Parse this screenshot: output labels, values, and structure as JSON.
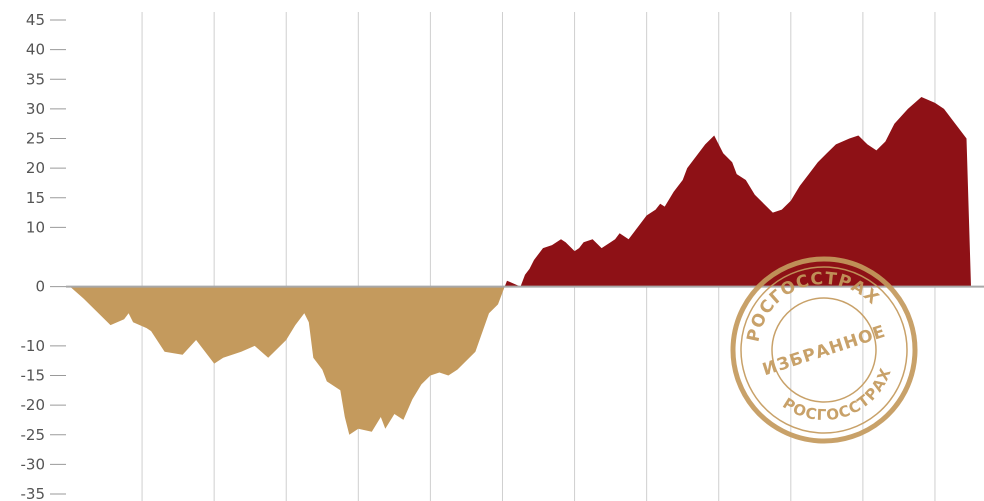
{
  "chart_data": {
    "type": "area",
    "ylim": [
      -35,
      45
    ],
    "y_ticks": [
      45,
      40,
      35,
      30,
      25,
      20,
      15,
      10,
      0,
      -10,
      -15,
      -20,
      -25,
      -30,
      -35
    ],
    "y_tick_labels": [
      "45",
      "40",
      "35",
      "30",
      "25",
      "20",
      "15",
      "10",
      "0",
      "-10",
      "-15",
      "-20",
      "-25",
      "-30",
      "-35"
    ],
    "x_range": [
      0,
      100
    ],
    "vertical_gridlines": [
      8,
      16,
      24,
      32,
      40,
      48,
      56,
      64,
      72,
      80,
      88,
      96
    ],
    "grid": "vertical",
    "colors": {
      "positive": "#8e1116",
      "negative": "#c49a5d",
      "grid": "#cfcfcf",
      "zero_line": "#a8a8a8"
    },
    "series": [
      {
        "values": [
          [
            0,
            0
          ],
          [
            1.5,
            -2
          ],
          [
            3.5,
            -5
          ],
          [
            4.5,
            -6.5
          ],
          [
            6,
            -5.5
          ],
          [
            6.5,
            -4.5
          ],
          [
            7,
            -6
          ],
          [
            8.5,
            -7
          ],
          [
            9,
            -7.5
          ],
          [
            10.5,
            -11
          ],
          [
            12.5,
            -11.5
          ],
          [
            14,
            -9
          ],
          [
            16,
            -13
          ],
          [
            17,
            -12
          ],
          [
            19,
            -11
          ],
          [
            20.5,
            -10
          ],
          [
            22,
            -12
          ],
          [
            24,
            -9
          ],
          [
            25,
            -6.5
          ],
          [
            26,
            -4.5
          ],
          [
            26.5,
            -6
          ],
          [
            27,
            -12
          ],
          [
            28,
            -14
          ],
          [
            28.5,
            -16
          ],
          [
            30,
            -17.5
          ],
          [
            30.5,
            -22
          ],
          [
            31,
            -25
          ],
          [
            32,
            -24
          ],
          [
            33.5,
            -24.5
          ],
          [
            34.5,
            -22
          ],
          [
            35,
            -24
          ],
          [
            36,
            -21.5
          ],
          [
            37,
            -22.5
          ],
          [
            38,
            -19
          ],
          [
            39,
            -16.5
          ],
          [
            40,
            -15
          ],
          [
            41,
            -14.5
          ],
          [
            42,
            -15
          ],
          [
            43,
            -14
          ],
          [
            45,
            -11
          ],
          [
            46.5,
            -4.5
          ],
          [
            47.5,
            -3
          ],
          [
            48.5,
            1
          ],
          [
            50,
            0
          ],
          [
            50.5,
            2
          ],
          [
            51,
            3
          ],
          [
            51.5,
            4.5
          ],
          [
            52.5,
            6.5
          ],
          [
            53.5,
            7
          ],
          [
            54.5,
            8
          ],
          [
            55,
            7.5
          ],
          [
            56,
            6
          ],
          [
            56.5,
            6.5
          ],
          [
            57,
            7.5
          ],
          [
            58,
            8
          ],
          [
            59,
            6.5
          ],
          [
            60,
            7.5
          ],
          [
            60.5,
            8
          ],
          [
            61,
            9
          ],
          [
            62,
            8
          ],
          [
            63,
            10
          ],
          [
            64,
            12
          ],
          [
            65,
            13
          ],
          [
            65.5,
            14
          ],
          [
            66,
            13.5
          ],
          [
            67,
            16
          ],
          [
            68,
            18
          ],
          [
            68.5,
            20
          ],
          [
            69.5,
            22
          ],
          [
            70.5,
            24
          ],
          [
            71.5,
            25.5
          ],
          [
            72.5,
            22.5
          ],
          [
            73.5,
            21
          ],
          [
            74,
            19
          ],
          [
            75,
            18
          ],
          [
            76,
            15.5
          ],
          [
            77,
            14
          ],
          [
            78,
            12.5
          ],
          [
            79,
            13
          ],
          [
            80,
            14.5
          ],
          [
            81,
            17
          ],
          [
            82,
            19
          ],
          [
            83,
            21
          ],
          [
            84,
            22.5
          ],
          [
            85,
            24
          ],
          [
            86.5,
            25
          ],
          [
            87.5,
            25.5
          ],
          [
            88.5,
            24
          ],
          [
            89.5,
            23
          ],
          [
            90.5,
            24.5
          ],
          [
            91.5,
            27.5
          ],
          [
            93,
            30
          ],
          [
            94.5,
            32
          ],
          [
            96,
            31
          ],
          [
            97,
            30
          ],
          [
            98,
            28
          ],
          [
            99.5,
            25
          ],
          [
            100,
            0
          ]
        ]
      }
    ]
  },
  "stamp": {
    "top_text": "РОСГОССТРАХ",
    "center_text": "ИЗБРАННОЕ",
    "bottom_text": "РОСГОССТРАХ",
    "color": "#c49a5d"
  }
}
